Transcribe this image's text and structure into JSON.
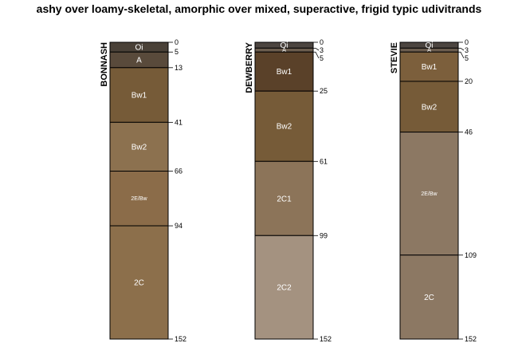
{
  "title": "ashy over loamy-skeletal, amorphic over mixed, superactive, frigid typic udivitrands",
  "chart_data": {
    "type": "soil-profile",
    "depth_units": "cm",
    "max_depth": 152,
    "profiles": [
      {
        "name": "BONNASH",
        "horizons": [
          {
            "name": "Oi",
            "top": 0,
            "bottom": 5,
            "color": "#4a4138"
          },
          {
            "name": "A",
            "top": 5,
            "bottom": 13,
            "color": "#594a3b"
          },
          {
            "name": "Bw1",
            "top": 13,
            "bottom": 41,
            "color": "#765b38"
          },
          {
            "name": "Bw2",
            "top": 41,
            "bottom": 66,
            "color": "#8c714f"
          },
          {
            "name": "2E/Bw",
            "top": 66,
            "bottom": 94,
            "color": "#8b6c49"
          },
          {
            "name": "2C",
            "top": 94,
            "bottom": 152,
            "color": "#8c6f4b"
          }
        ],
        "depth_labels": [
          "0",
          "5",
          "13",
          "41",
          "66",
          "94",
          "152"
        ]
      },
      {
        "name": "DEWBERRY",
        "horizons": [
          {
            "name": "Oi",
            "top": 0,
            "bottom": 3,
            "color": "#4c4540"
          },
          {
            "name": "A",
            "top": 3,
            "bottom": 5,
            "color": "#6b5d4e"
          },
          {
            "name": "Bw1",
            "top": 5,
            "bottom": 25,
            "color": "#5a4129"
          },
          {
            "name": "Bw2",
            "top": 25,
            "bottom": 61,
            "color": "#765b38"
          },
          {
            "name": "2C1",
            "top": 61,
            "bottom": 99,
            "color": "#8c7459"
          },
          {
            "name": "2C2",
            "top": 99,
            "bottom": 152,
            "color": "#a49280"
          }
        ],
        "depth_labels": [
          "0",
          "3",
          "5",
          "25",
          "61",
          "99",
          "152"
        ]
      },
      {
        "name": "STEVIE",
        "horizons": [
          {
            "name": "Oi",
            "top": 0,
            "bottom": 3,
            "color": "#4c4540"
          },
          {
            "name": "A",
            "top": 3,
            "bottom": 5,
            "color": "#6b5d4e"
          },
          {
            "name": "Bw1",
            "top": 5,
            "bottom": 20,
            "color": "#7c5f3c"
          },
          {
            "name": "Bw2",
            "top": 20,
            "bottom": 46,
            "color": "#765b38"
          },
          {
            "name": "2E/Bw",
            "top": 46,
            "bottom": 109,
            "color": "#8c7863"
          },
          {
            "name": "2C",
            "top": 109,
            "bottom": 152,
            "color": "#8c7863"
          }
        ],
        "depth_labels": [
          "0",
          "3",
          "5",
          "20",
          "46",
          "109",
          "152"
        ]
      }
    ]
  }
}
